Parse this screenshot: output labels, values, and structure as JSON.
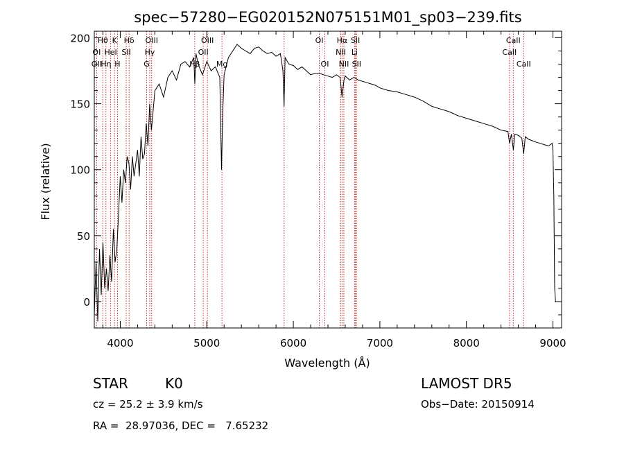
{
  "chart_data": {
    "type": "line",
    "title": "spec−57280−EG020152N075151M01_sp03−239.fits",
    "xlabel": "Wavelength (Å)",
    "ylabel": "Flux (relative)",
    "xlim": [
      3700,
      9100
    ],
    "ylim": [
      -20,
      205
    ],
    "x_ticks": [
      4000,
      5000,
      6000,
      7000,
      8000,
      9000
    ],
    "y_ticks": [
      0,
      50,
      100,
      150,
      200
    ],
    "grid": false,
    "line_color": "#000000",
    "marker_color": "#cc2222",
    "series": [
      {
        "x": [
          3700,
          3720,
          3740,
          3760,
          3780,
          3800,
          3820,
          3840,
          3860,
          3880,
          3900,
          3920,
          3940,
          3960,
          3980,
          4000,
          4020,
          4040,
          4060,
          4080,
          4100,
          4120,
          4140,
          4160,
          4180,
          4200,
          4220,
          4240,
          4260,
          4280,
          4300,
          4320,
          4340,
          4360,
          4380,
          4400,
          4450,
          4500,
          4550,
          4600,
          4650,
          4700,
          4750,
          4800,
          4850,
          4862,
          4875,
          4900,
          4950,
          5000,
          5050,
          5100,
          5150,
          5170,
          5183,
          5200,
          5250,
          5300,
          5350,
          5400,
          5450,
          5500,
          5550,
          5600,
          5650,
          5700,
          5750,
          5800,
          5850,
          5880,
          5893,
          5905,
          5950,
          6000,
          6050,
          6100,
          6150,
          6200,
          6250,
          6300,
          6350,
          6400,
          6450,
          6500,
          6540,
          6563,
          6585,
          6600,
          6650,
          6700,
          6750,
          6800,
          6850,
          6900,
          6950,
          7000,
          7100,
          7200,
          7300,
          7400,
          7500,
          7600,
          7700,
          7800,
          7900,
          8000,
          8100,
          8200,
          8300,
          8400,
          8480,
          8498,
          8520,
          8542,
          8560,
          8600,
          8640,
          8662,
          8680,
          8720,
          8760,
          8800,
          8850,
          8900,
          8950,
          8990,
          9000,
          9010,
          9020,
          9030,
          9040
        ],
        "y": [
          -10,
          30,
          -15,
          40,
          5,
          45,
          10,
          25,
          8,
          35,
          15,
          55,
          30,
          40,
          65,
          95,
          75,
          100,
          90,
          110,
          105,
          85,
          110,
          95,
          105,
          115,
          95,
          125,
          108,
          112,
          135,
          118,
          150,
          130,
          145,
          160,
          165,
          155,
          170,
          175,
          168,
          180,
          182,
          178,
          185,
          165,
          188,
          180,
          172,
          182,
          175,
          178,
          170,
          100,
          140,
          172,
          185,
          190,
          195,
          192,
          190,
          188,
          192,
          193,
          190,
          188,
          189,
          186,
          188,
          175,
          148,
          185,
          180,
          179,
          176,
          178,
          175,
          172,
          173,
          173,
          172,
          171,
          170,
          172,
          170,
          155,
          168,
          171,
          168,
          170,
          168,
          167,
          166,
          165,
          164,
          162,
          160,
          159,
          157,
          155,
          152,
          148,
          146,
          144,
          141,
          139,
          137,
          135,
          133,
          130,
          129,
          120,
          127,
          115,
          127,
          126,
          124,
          112,
          125,
          123,
          122,
          121,
          120,
          119,
          118,
          120,
          115,
          80,
          10,
          0,
          0
        ]
      }
    ],
    "annotations": [
      {
        "label": "Hθ",
        "wavelength": 3798,
        "row": 1
      },
      {
        "label": "OI",
        "wavelength": 3727,
        "row": 2
      },
      {
        "label": "OII",
        "wavelength": 3727,
        "row": 3
      },
      {
        "label": "Hη",
        "wavelength": 3835,
        "row": 3
      },
      {
        "label": "K",
        "wavelength": 3934,
        "row": 1
      },
      {
        "label": "HeI",
        "wavelength": 3889,
        "row": 2
      },
      {
        "label": "H",
        "wavelength": 3968,
        "row": 3
      },
      {
        "label": "Hδ",
        "wavelength": 4102,
        "row": 1
      },
      {
        "label": "SII",
        "wavelength": 4069,
        "row": 2
      },
      {
        "label": "OIII",
        "wavelength": 4363,
        "row": 1
      },
      {
        "label": "Hγ",
        "wavelength": 4341,
        "row": 2
      },
      {
        "label": "G",
        "wavelength": 4305,
        "row": 3
      },
      {
        "label": "OIII",
        "wavelength": 5007,
        "row": 1
      },
      {
        "label": "OII",
        "wavelength": 4959,
        "row": 2
      },
      {
        "label": "Hβ",
        "wavelength": 4861,
        "row": 3
      },
      {
        "label": "Mg",
        "wavelength": 5175,
        "row": 3
      },
      {
        "label": "OI",
        "wavelength": 6300,
        "row": 1
      },
      {
        "label": "OI",
        "wavelength": 6364,
        "row": 3
      },
      {
        "label": "Hα",
        "wavelength": 6563,
        "row": 1
      },
      {
        "label": "NII",
        "wavelength": 6548,
        "row": 2
      },
      {
        "label": "NII",
        "wavelength": 6584,
        "row": 3
      },
      {
        "label": "SII",
        "wavelength": 6717,
        "row": 1
      },
      {
        "label": "Li",
        "wavelength": 6708,
        "row": 2
      },
      {
        "label": "SII",
        "wavelength": 6731,
        "row": 3
      },
      {
        "label": "CaII",
        "wavelength": 8542,
        "row": 1
      },
      {
        "label": "CaII",
        "wavelength": 8498,
        "row": 2
      },
      {
        "label": "CaII",
        "wavelength": 8662,
        "row": 3
      }
    ],
    "marker_lines": [
      3727,
      3798,
      3835,
      3889,
      3934,
      3968,
      4069,
      4102,
      4305,
      4341,
      4363,
      4861,
      4959,
      5007,
      5175,
      5893,
      6300,
      6364,
      6548,
      6563,
      6584,
      6708,
      6717,
      6731,
      8498,
      8542,
      8662
    ]
  },
  "footer": {
    "class_label": "STAR",
    "subclass": "K0",
    "survey": "LAMOST DR5",
    "redshift_text": "cz = 25.2 ± 3.9 km/s",
    "obs_date": "Obs−Date: 20150914",
    "coords": "RA =  28.97036, DEC =   7.65232"
  }
}
